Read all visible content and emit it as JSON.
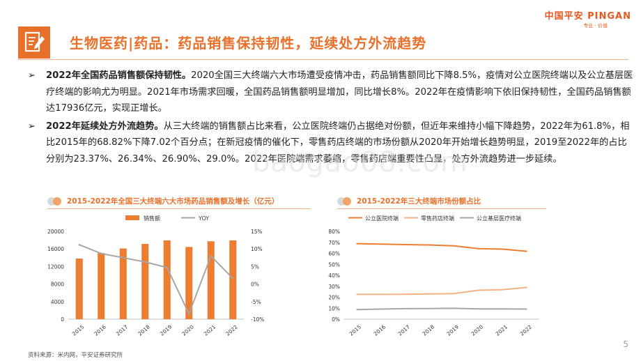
{
  "logo": {
    "name": "中国平安 PINGAN",
    "tagline": "专业 · 价值"
  },
  "title": "生物医药|药品：药品销售保持韧性，延续处方外流趋势",
  "bullets": [
    {
      "lead": "2022年全国药品销售额保持韧性。",
      "text": "2020全国三大终端六大市场遭受疫情冲击，药品销售额同比下降8.5%，疫情对公立医院终端以及公立基层医疗终端的影响尤为明显。2021年市场需求回暖，全国药品销售额明显增加，同比增长8%。2022年在疫情影响下依旧保持韧性，全国药品销售额达17936亿元，实现正增长。"
    },
    {
      "lead": "2022年延续处方外流趋势。",
      "text": "从三大终端的销售额占比来看，公立医院终端仍占据绝对份额，但近年来维持小幅下降趋势，2022年为61.8%，相比2015年的68.82%下降7.02个百分点；在新冠疫情的催化下，零售药店终端的市场份额从2020年开始增长趋势明显，2019至2022年的占比分别为23.37%、26.34%、26.90%、29.0%。2022年医院端需求萎缩，零售药店端重要性凸显，处方外流趋势进一步延续。"
    }
  ],
  "watermark": "baogao08.com",
  "footer": "资料来源：米内网，平安证券研究所",
  "page_number": "5",
  "colors": {
    "accent": "#e9702a",
    "bar": "#ed7d31",
    "yoy": "#a6a6a6",
    "retail": "#f4b183",
    "grass": "#a6a6a6"
  },
  "chart_data": [
    {
      "type": "bar",
      "title": "2015-2022年全国三大终端六大市场药品销售额及增长（亿元）",
      "categories": [
        "2015",
        "2016",
        "2017",
        "2018",
        "2019",
        "2020",
        "2021",
        "2022"
      ],
      "series": [
        {
          "name": "销售额",
          "type": "bar",
          "axis": "left",
          "values": [
            13800,
            15050,
            16100,
            17150,
            17950,
            16450,
            17750,
            17936
          ]
        },
        {
          "name": "YOY",
          "type": "line",
          "axis": "right",
          "values": [
            11.2,
            8.7,
            7.5,
            6.3,
            4.7,
            -8.5,
            8.0,
            1.6
          ]
        }
      ],
      "left_axis": {
        "ticks": [
          "0",
          "4000",
          "8000",
          "12000",
          "16000",
          "20000"
        ],
        "min": 0,
        "max": 20000
      },
      "right_axis": {
        "ticks": [
          "-10%",
          "-5%",
          "0%",
          "5%",
          "10%",
          "15%"
        ],
        "min": -10,
        "max": 15
      },
      "legend": "top-left"
    },
    {
      "type": "line",
      "title": "2015-2022年三大终端市场份额占比",
      "categories": [
        "2015",
        "2016",
        "2017",
        "2018",
        "2019",
        "2020",
        "2021",
        "2022"
      ],
      "series": [
        {
          "name": "公立医院终端",
          "values": [
            68.82,
            68.4,
            67.9,
            67.6,
            66.8,
            64.3,
            63.8,
            61.8
          ]
        },
        {
          "name": "零售药店终端",
          "values": [
            22.6,
            22.6,
            22.7,
            23.0,
            23.37,
            26.34,
            26.9,
            29.0
          ]
        },
        {
          "name": "公立基层医疗终端",
          "values": [
            8.7,
            9.2,
            9.6,
            9.7,
            9.9,
            9.4,
            9.4,
            9.2
          ]
        }
      ],
      "y_axis": {
        "ticks": [
          "0%",
          "10%",
          "20%",
          "30%",
          "40%",
          "50%",
          "60%",
          "70%",
          "80%"
        ],
        "min": 0,
        "max": 80
      },
      "legend": "top"
    }
  ]
}
